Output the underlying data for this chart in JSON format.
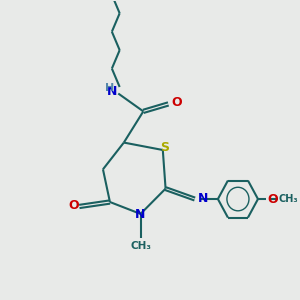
{
  "bg_color": "#e8eae8",
  "bond_color": "#1a6060",
  "atom_colors": {
    "N": "#0000cc",
    "O": "#cc0000",
    "S": "#aaaa00",
    "H": "#5588aa",
    "C": "#1a6060"
  },
  "figsize": [
    3.0,
    3.0
  ],
  "dpi": 100
}
